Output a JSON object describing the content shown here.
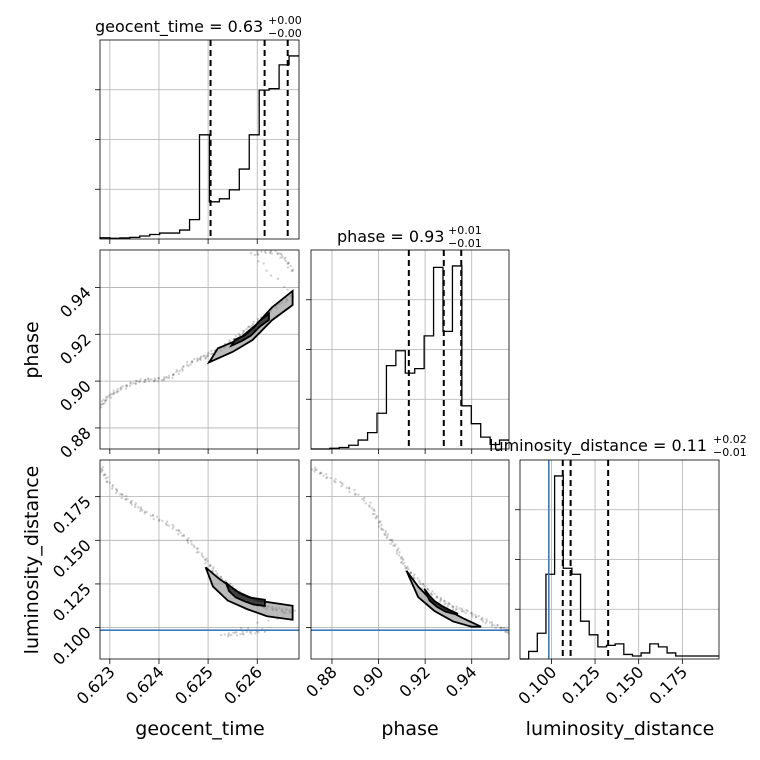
{
  "figure": {
    "type": "corner-plot"
  },
  "colors": {
    "truth": "#3b7bbf",
    "contour_outer": "#d9d9d9",
    "contour_mid": "#8c8c8c",
    "contour_inner": "#2b2b2b",
    "line": "#000000"
  },
  "titles": {
    "geocent_time": {
      "main": "geocent_time = 0.63",
      "plus": "+0.00",
      "minus": "−0.00"
    },
    "phase": {
      "main": "phase = 0.93",
      "plus": "+0.01",
      "minus": "−0.01"
    },
    "luminosity_distance": {
      "main": "luminosity_distance = 0.11",
      "plus": "+0.02",
      "minus": "−0.01"
    }
  },
  "axis_labels": {
    "bottom": [
      "geocent_time",
      "phase",
      "luminosity_distance"
    ],
    "left": [
      "phase",
      "luminosity_distance"
    ]
  },
  "ticks": {
    "geocent_time": [
      "0.623",
      "0.624",
      "0.625",
      "0.626"
    ],
    "phase": [
      "0.88",
      "0.90",
      "0.92",
      "0.94"
    ],
    "luminosity_distance": [
      "0.100",
      "0.125",
      "0.150",
      "0.175"
    ]
  },
  "chart_data": {
    "type": "corner",
    "parameters": [
      "geocent_time",
      "phase",
      "luminosity_distance"
    ],
    "ranges": {
      "geocent_time": [
        0.6228,
        0.62685
      ],
      "phase": [
        0.871,
        0.956
      ],
      "luminosity_distance": [
        0.082,
        0.196
      ]
    },
    "tick_values": {
      "geocent_time": [
        0.623,
        0.624,
        0.625,
        0.626
      ],
      "phase": [
        0.88,
        0.9,
        0.92,
        0.94
      ],
      "luminosity_distance": [
        0.1,
        0.125,
        0.15,
        0.175
      ]
    },
    "truths": {
      "luminosity_distance": 0.0985
    },
    "quantiles": {
      "geocent_time": [
        0.62505,
        0.62615,
        0.62662
      ],
      "phase": [
        0.913,
        0.928,
        0.9355
      ],
      "luminosity_distance": [
        0.1065,
        0.111,
        0.1325
      ]
    },
    "histograms": {
      "geocent_time": {
        "counts": [
          0.8,
          0.5,
          0.7,
          1.1,
          2,
          3,
          4,
          4,
          6,
          13,
          70,
          25,
          27,
          33,
          47,
          70,
          100,
          101,
          117,
          123
        ]
      },
      "phase": {
        "counts": [
          0,
          0,
          0.5,
          1,
          2.5,
          6,
          11,
          24,
          56,
          66,
          51,
          54,
          76,
          122,
          79,
          123,
          29,
          17,
          8,
          3,
          6
        ]
      },
      "luminosity_distance": {
        "counts": [
          0,
          5,
          17,
          56,
          121,
          60,
          56,
          25,
          16,
          8,
          9,
          10,
          3,
          2,
          4,
          10,
          8,
          4,
          2,
          2,
          2,
          2,
          2
        ]
      }
    },
    "scatter": {
      "geocent_time_vs_phase": {
        "points": [
          [
            0.62282,
            0.8895
          ],
          [
            0.6229,
            0.892
          ],
          [
            0.62305,
            0.8945
          ],
          [
            0.6232,
            0.8965
          ],
          [
            0.6234,
            0.8985
          ],
          [
            0.6236,
            0.9
          ],
          [
            0.6238,
            0.9005
          ],
          [
            0.624,
            0.9005
          ],
          [
            0.6242,
            0.9015
          ],
          [
            0.6244,
            0.904
          ],
          [
            0.6246,
            0.9075
          ],
          [
            0.6248,
            0.9095
          ],
          [
            0.62495,
            0.9105
          ],
          [
            0.6251,
            0.9125
          ],
          [
            0.6253,
            0.9145
          ],
          [
            0.6255,
            0.9175
          ],
          [
            0.6257,
            0.9205
          ],
          [
            0.6259,
            0.924
          ],
          [
            0.6261,
            0.927
          ],
          [
            0.6263,
            0.9305
          ],
          [
            0.6265,
            0.9335
          ],
          [
            0.62672,
            0.9365
          ],
          [
            0.6259,
            0.954
          ],
          [
            0.6262,
            0.9555
          ],
          [
            0.62645,
            0.9545
          ],
          [
            0.6266,
            0.951
          ],
          [
            0.62675,
            0.946
          ]
        ]
      },
      "geocent_time_vs_luminosity_distance": {
        "points": [
          [
            0.62282,
            0.192
          ],
          [
            0.6229,
            0.186
          ],
          [
            0.6231,
            0.179
          ],
          [
            0.6233,
            0.1745
          ],
          [
            0.6235,
            0.1705
          ],
          [
            0.6237,
            0.1665
          ],
          [
            0.624,
            0.162
          ],
          [
            0.6243,
            0.1575
          ],
          [
            0.6245,
            0.1525
          ],
          [
            0.6247,
            0.147
          ],
          [
            0.6249,
            0.1405
          ],
          [
            0.62505,
            0.135
          ],
          [
            0.6252,
            0.1295
          ],
          [
            0.6254,
            0.125
          ],
          [
            0.6256,
            0.1205
          ],
          [
            0.6258,
            0.1165
          ],
          [
            0.626,
            0.1135
          ],
          [
            0.6262,
            0.1115
          ],
          [
            0.6264,
            0.1105
          ],
          [
            0.6266,
            0.1095
          ],
          [
            0.62675,
            0.109
          ],
          [
            0.6253,
            0.0955
          ],
          [
            0.6256,
            0.0965
          ],
          [
            0.6259,
            0.0975
          ],
          [
            0.6262,
            0.0985
          ]
        ]
      },
      "phase_vs_luminosity_distance": {
        "points": [
          [
            0.8715,
            0.1915
          ],
          [
            0.876,
            0.1875
          ],
          [
            0.883,
            0.183
          ],
          [
            0.889,
            0.178
          ],
          [
            0.896,
            0.171
          ],
          [
            0.899,
            0.164
          ],
          [
            0.9015,
            0.157
          ],
          [
            0.904,
            0.152
          ],
          [
            0.907,
            0.147
          ],
          [
            0.9095,
            0.1405
          ],
          [
            0.911,
            0.1355
          ],
          [
            0.914,
            0.131
          ],
          [
            0.918,
            0.1255
          ],
          [
            0.922,
            0.1205
          ],
          [
            0.926,
            0.1165
          ],
          [
            0.9295,
            0.1135
          ],
          [
            0.933,
            0.111
          ],
          [
            0.9375,
            0.1095
          ],
          [
            0.942,
            0.1065
          ],
          [
            0.9465,
            0.1035
          ],
          [
            0.951,
            0.1005
          ],
          [
            0.9545,
            0.0985
          ],
          [
            0.9555,
            0.0975
          ]
        ]
      }
    },
    "contours": {
      "geocent_time_vs_phase": [
        [
          0.62502,
          0.908
        ],
        [
          0.6252,
          0.914
        ],
        [
          0.6256,
          0.9175
        ],
        [
          0.626,
          0.9245
        ],
        [
          0.6263,
          0.9315
        ],
        [
          0.62672,
          0.9385
        ],
        [
          0.62672,
          0.9325
        ],
        [
          0.6263,
          0.926
        ],
        [
          0.6259,
          0.9175
        ],
        [
          0.6255,
          0.9125
        ],
        [
          0.62502,
          0.908
        ]
      ],
      "geocent_time_vs_luminosity_distance": [
        [
          0.62495,
          0.1345
        ],
        [
          0.6252,
          0.1285
        ],
        [
          0.6256,
          0.1205
        ],
        [
          0.626,
          0.1155
        ],
        [
          0.62672,
          0.1125
        ],
        [
          0.62672,
          0.1045
        ],
        [
          0.6262,
          0.1065
        ],
        [
          0.6258,
          0.1105
        ],
        [
          0.6254,
          0.1155
        ],
        [
          0.6251,
          0.1235
        ],
        [
          0.62495,
          0.1345
        ]
      ],
      "phase_vs_luminosity_distance": [
        [
          0.912,
          0.1325
        ],
        [
          0.917,
          0.1235
        ],
        [
          0.922,
          0.1165
        ],
        [
          0.929,
          0.1105
        ],
        [
          0.936,
          0.1055
        ],
        [
          0.944,
          0.1005
        ],
        [
          0.94,
          0.1005
        ],
        [
          0.932,
          0.1035
        ],
        [
          0.924,
          0.1095
        ],
        [
          0.917,
          0.1175
        ],
        [
          0.912,
          0.1325
        ]
      ]
    }
  }
}
